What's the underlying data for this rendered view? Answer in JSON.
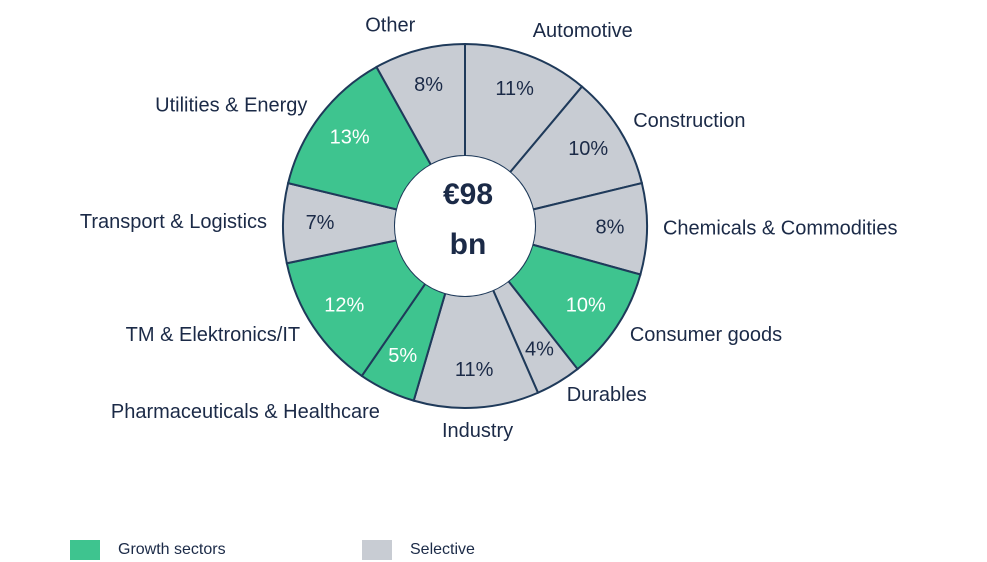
{
  "chart_data": {
    "type": "donut",
    "center_text": [
      "€98",
      "bn"
    ],
    "categories": [
      "Automotive",
      "Construction",
      "Chemicals & Commodities",
      "Consumer goods",
      "Durables",
      "Industry",
      "Pharmaceuticals & Healthcare",
      "TM & Elektronics/IT",
      "Transport & Logistics",
      "Utilities & Energy",
      "Other"
    ],
    "values": [
      11,
      10,
      8,
      10,
      4,
      11,
      5,
      12,
      7,
      13,
      8
    ],
    "value_labels": [
      "11%",
      "10%",
      "8%",
      "10%",
      "4%",
      "11%",
      "5%",
      "12%",
      "7%",
      "13%",
      "8%"
    ],
    "colors": [
      "#c8ccd3",
      "#c8ccd3",
      "#c8ccd3",
      "#3ec48f",
      "#c8ccd3",
      "#c8ccd3",
      "#3ec48f",
      "#3ec48f",
      "#c8ccd3",
      "#3ec48f",
      "#c8ccd3"
    ],
    "legend": [
      {
        "name": "Growth sectors",
        "color": "#3ec48f"
      },
      {
        "name": "Selective",
        "color": "#c8ccd3"
      }
    ]
  }
}
